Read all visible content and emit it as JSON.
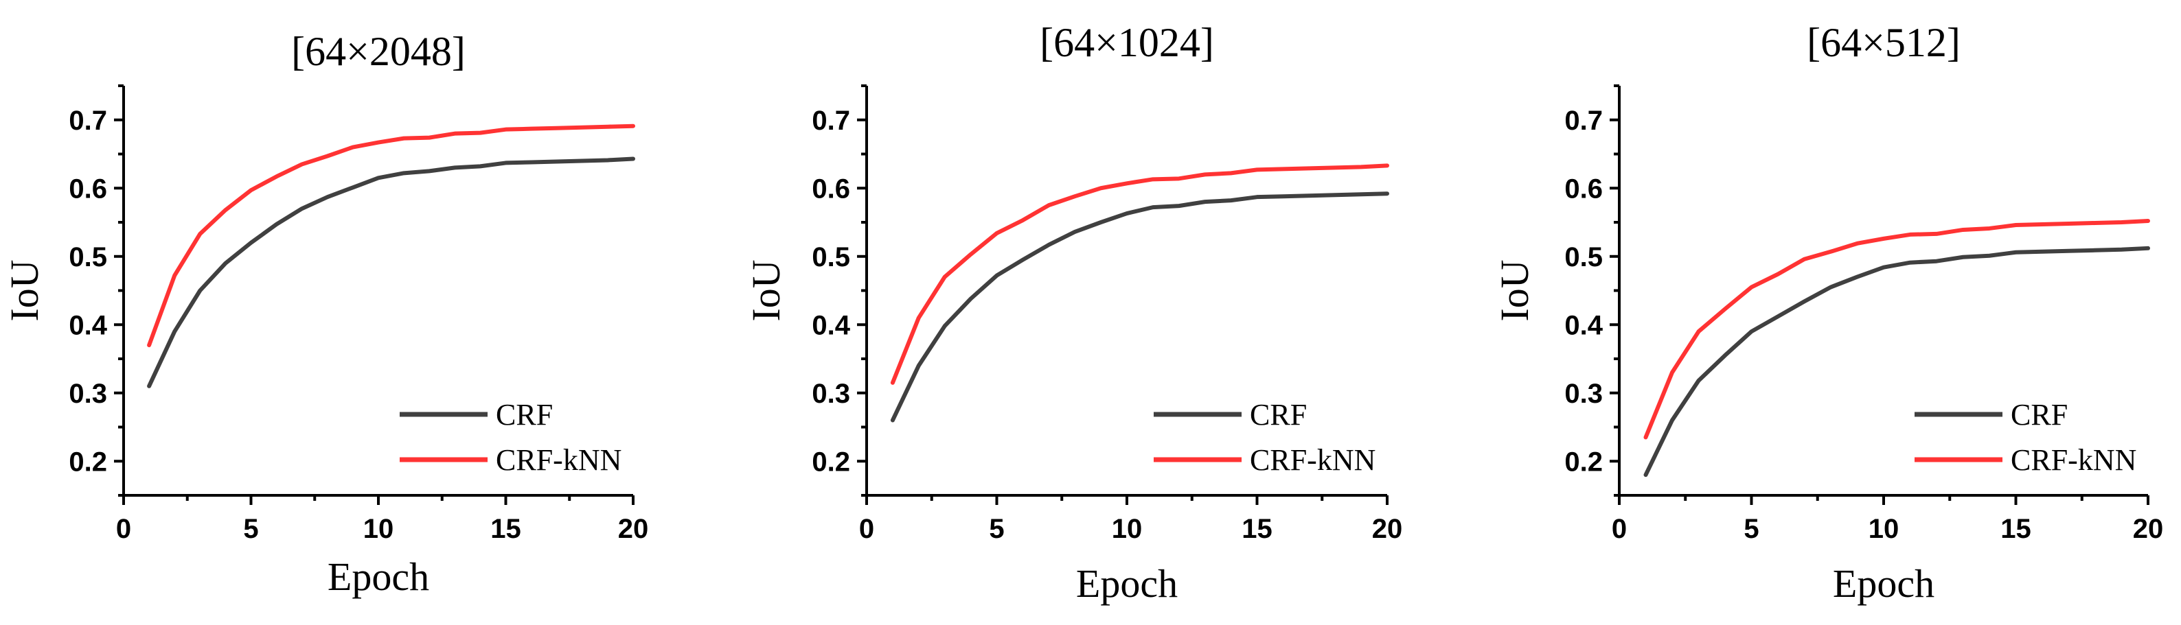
{
  "chart_data": [
    {
      "type": "line",
      "title": "[64×2048]",
      "xlabel": "Epoch",
      "ylabel": "IoU",
      "xlim": [
        0,
        20
      ],
      "ylim": [
        0.15,
        0.75
      ],
      "xticks": [
        0,
        5,
        10,
        15,
        20
      ],
      "yticks": [
        0.2,
        0.3,
        0.4,
        0.5,
        0.6,
        0.7
      ],
      "x": [
        1,
        2,
        3,
        4,
        5,
        6,
        7,
        8,
        9,
        10,
        11,
        12,
        13,
        14,
        15,
        16,
        17,
        18,
        19,
        20
      ],
      "series": [
        {
          "name": "CRF",
          "color": "#404040",
          "values": [
            0.31,
            0.39,
            0.45,
            0.49,
            0.52,
            0.547,
            0.57,
            0.587,
            0.601,
            0.615,
            0.622,
            0.625,
            0.63,
            0.632,
            0.637,
            0.638,
            0.639,
            0.64,
            0.641,
            0.643
          ]
        },
        {
          "name": "CRF-kNN",
          "color": "#ff3333",
          "values": [
            0.37,
            0.472,
            0.533,
            0.568,
            0.597,
            0.617,
            0.635,
            0.647,
            0.66,
            0.667,
            0.673,
            0.674,
            0.68,
            0.681,
            0.686,
            0.687,
            0.688,
            0.689,
            0.69,
            0.691
          ]
        }
      ],
      "legend": "bottom-right"
    },
    {
      "type": "line",
      "title": "[64×1024]",
      "xlabel": "Epoch",
      "ylabel": "IoU",
      "xlim": [
        0,
        20
      ],
      "ylim": [
        0.15,
        0.75
      ],
      "xticks": [
        0,
        5,
        10,
        15,
        20
      ],
      "yticks": [
        0.2,
        0.3,
        0.4,
        0.5,
        0.6,
        0.7
      ],
      "x": [
        1,
        2,
        3,
        4,
        5,
        6,
        7,
        8,
        9,
        10,
        11,
        12,
        13,
        14,
        15,
        16,
        17,
        18,
        19,
        20
      ],
      "series": [
        {
          "name": "CRF",
          "color": "#404040",
          "values": [
            0.26,
            0.34,
            0.398,
            0.438,
            0.472,
            0.495,
            0.517,
            0.536,
            0.55,
            0.563,
            0.572,
            0.574,
            0.58,
            0.582,
            0.587,
            0.588,
            0.589,
            0.59,
            0.591,
            0.592
          ]
        },
        {
          "name": "CRF-kNN",
          "color": "#ff3333",
          "values": [
            0.315,
            0.41,
            0.47,
            0.503,
            0.534,
            0.553,
            0.575,
            0.588,
            0.6,
            0.607,
            0.613,
            0.614,
            0.62,
            0.622,
            0.627,
            0.628,
            0.629,
            0.63,
            0.631,
            0.633
          ]
        }
      ],
      "legend": "bottom-right"
    },
    {
      "type": "line",
      "title": "[64×512]",
      "xlabel": "Epoch",
      "ylabel": "IoU",
      "xlim": [
        0,
        20
      ],
      "ylim": [
        0.15,
        0.75
      ],
      "xticks": [
        0,
        5,
        10,
        15,
        20
      ],
      "yticks": [
        0.2,
        0.3,
        0.4,
        0.5,
        0.6,
        0.7
      ],
      "x": [
        1,
        2,
        3,
        4,
        5,
        6,
        7,
        8,
        9,
        10,
        11,
        12,
        13,
        14,
        15,
        16,
        17,
        18,
        19,
        20
      ],
      "series": [
        {
          "name": "CRF",
          "color": "#404040",
          "values": [
            0.18,
            0.26,
            0.318,
            0.355,
            0.39,
            0.412,
            0.434,
            0.455,
            0.47,
            0.484,
            0.491,
            0.493,
            0.499,
            0.501,
            0.506,
            0.507,
            0.508,
            0.509,
            0.51,
            0.512
          ]
        },
        {
          "name": "CRF-kNN",
          "color": "#ff3333",
          "values": [
            0.235,
            0.33,
            0.39,
            0.423,
            0.455,
            0.474,
            0.496,
            0.507,
            0.519,
            0.526,
            0.532,
            0.533,
            0.539,
            0.541,
            0.546,
            0.547,
            0.548,
            0.549,
            0.55,
            0.552
          ]
        }
      ],
      "legend": "bottom-right"
    }
  ]
}
